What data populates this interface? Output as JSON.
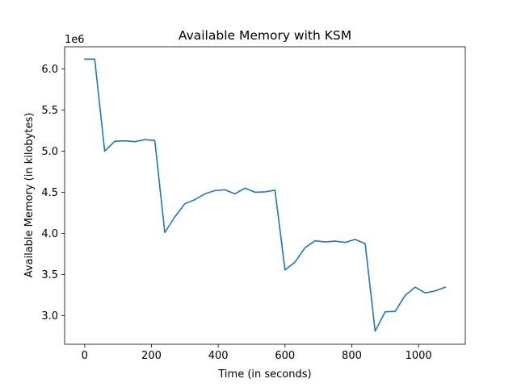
{
  "chart_data": {
    "type": "line",
    "title": "Available Memory with KSM",
    "xlabel": "Time (in seconds)",
    "ylabel": "Available Memory (in kilobytes)",
    "y_offset_label": "1e6",
    "xlim": [
      -60,
      1140
    ],
    "ylim": [
      2650000,
      6270000
    ],
    "xticks": [
      0,
      200,
      400,
      600,
      800,
      1000
    ],
    "yticks": [
      3000000,
      3500000,
      4000000,
      4500000,
      5000000,
      5500000,
      6000000
    ],
    "ytick_labels": [
      "3.0",
      "3.5",
      "4.0",
      "4.5",
      "5.0",
      "5.5",
      "6.0"
    ],
    "grid": false,
    "series": [
      {
        "color": "#1f77b4",
        "x": [
          0,
          30,
          60,
          90,
          120,
          150,
          180,
          210,
          240,
          270,
          300,
          330,
          360,
          390,
          420,
          450,
          480,
          510,
          540,
          570,
          600,
          630,
          660,
          690,
          720,
          750,
          780,
          810,
          840,
          870,
          900,
          930,
          960,
          990,
          1020,
          1050,
          1080
        ],
        "y": [
          6120000,
          6120000,
          5000000,
          5120000,
          5125000,
          5115000,
          5140000,
          5130000,
          4010000,
          4200000,
          4360000,
          4410000,
          4480000,
          4520000,
          4530000,
          4480000,
          4550000,
          4500000,
          4505000,
          4525000,
          3555000,
          3650000,
          3825000,
          3910000,
          3895000,
          3905000,
          3890000,
          3925000,
          3875000,
          2810000,
          3045000,
          3050000,
          3245000,
          3345000,
          3275000,
          3300000,
          3345000
        ]
      }
    ]
  }
}
